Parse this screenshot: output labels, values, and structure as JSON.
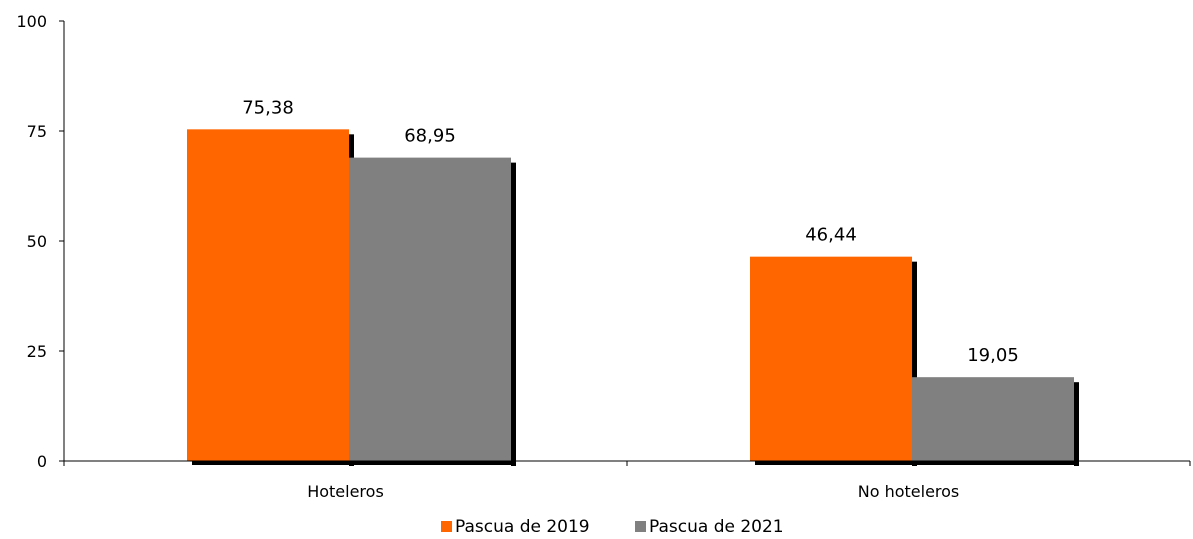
{
  "chart_data": {
    "type": "bar",
    "title": "",
    "xlabel": "",
    "ylabel": "",
    "categories": [
      "Hoteleros",
      "No hoteleros"
    ],
    "series": [
      {
        "name": "Pascua de 2019",
        "values": [
          75.38,
          46.44
        ],
        "labels": [
          "75,38",
          "46,44"
        ],
        "color": "#ff6600"
      },
      {
        "name": "Pascua de 2021",
        "values": [
          68.95,
          19.05
        ],
        "labels": [
          "68,95",
          "19,05"
        ],
        "color": "#808080"
      }
    ],
    "ylim": [
      0,
      100
    ],
    "yticks": [
      0,
      25,
      50,
      75,
      100
    ],
    "grid": false,
    "legend_position": "bottom-center",
    "shadow_color": "#000000"
  }
}
